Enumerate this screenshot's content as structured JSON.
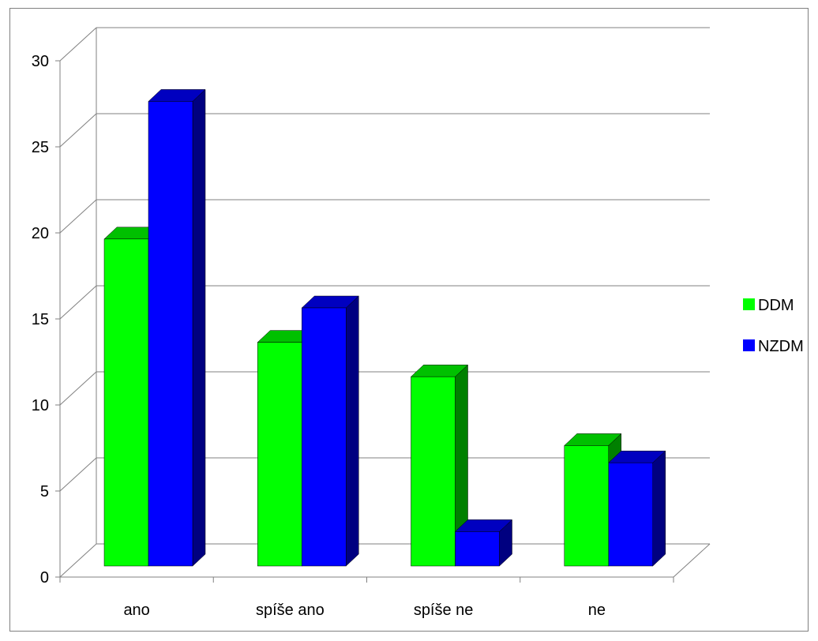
{
  "chart_data": {
    "type": "bar",
    "categories": [
      "ano",
      "spíše ano",
      "spíše ne",
      "ne"
    ],
    "series": [
      {
        "name": "DDM",
        "values": [
          19,
          13,
          11,
          7
        ],
        "color": "#00ff00",
        "side_color": "#008000",
        "top_color": "#00c000"
      },
      {
        "name": "NZDM",
        "values": [
          27,
          15,
          2,
          6
        ],
        "color": "#0000ff",
        "side_color": "#000080",
        "top_color": "#0000c0"
      }
    ],
    "ylim": [
      0,
      30
    ],
    "yticks": [
      "0",
      "5",
      "10",
      "15",
      "20",
      "25",
      "30"
    ],
    "grid": true,
    "legend_position": "right",
    "style": "3d-clustered-column"
  }
}
